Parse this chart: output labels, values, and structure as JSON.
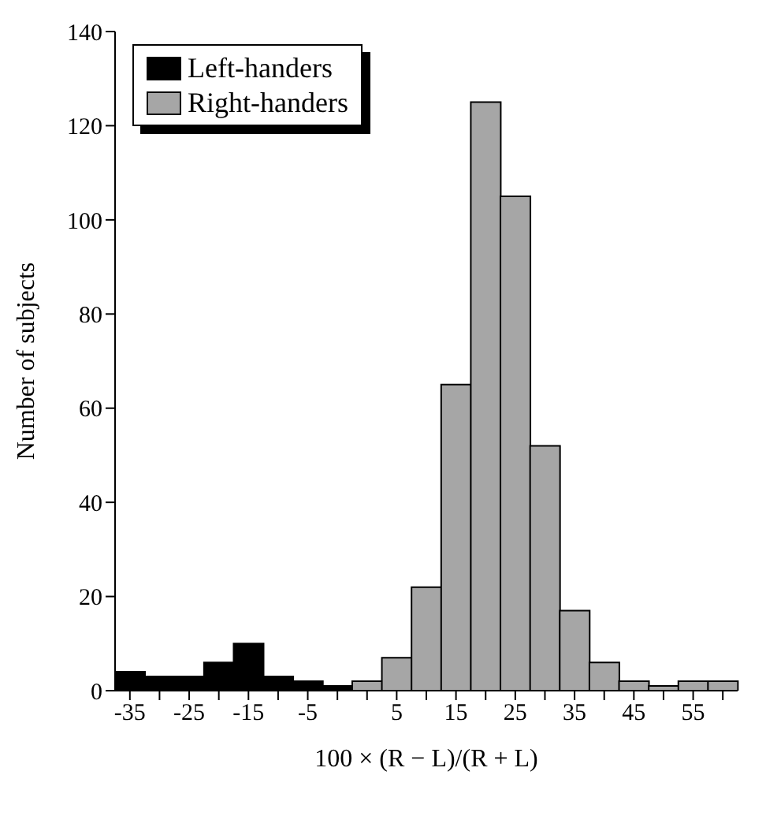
{
  "chart_data": {
    "type": "bar",
    "xlabel": "100 × (R − L)/(R + L)",
    "ylabel": "Number of subjects",
    "categories": [
      "-35",
      null,
      "-25",
      null,
      "-15",
      null,
      "-5",
      null,
      null,
      "5",
      null,
      "15",
      null,
      "25",
      null,
      "35",
      null,
      "45",
      null,
      "55",
      null
    ],
    "series": [
      {
        "name": "Left-handers",
        "color": "#000000",
        "values": [
          4,
          3,
          3,
          6,
          10,
          3,
          2,
          1,
          null,
          null,
          null,
          null,
          null,
          null,
          null,
          null,
          null,
          null,
          null,
          null,
          null
        ]
      },
      {
        "name": "Right-handers",
        "color": "#a6a6a6",
        "values": [
          null,
          null,
          null,
          null,
          null,
          null,
          null,
          null,
          2,
          7,
          22,
          65,
          125,
          105,
          52,
          17,
          6,
          2,
          1,
          2,
          2
        ]
      }
    ],
    "stacked": true,
    "ylim": [
      0,
      140
    ],
    "yticks": [
      0,
      20,
      40,
      60,
      80,
      100,
      120,
      140
    ],
    "legend": "top left",
    "grid": false
  }
}
